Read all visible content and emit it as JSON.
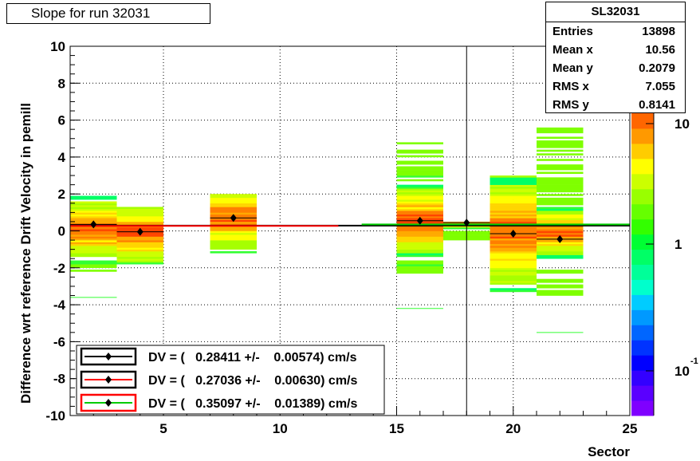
{
  "header": {
    "title": "Slope for run 32031"
  },
  "stats_box": {
    "name": "SL32031",
    "rows": [
      {
        "label": "Entries",
        "value": "13898"
      },
      {
        "label": "Mean x",
        "value": "10.56"
      },
      {
        "label": "Mean y",
        "value": "0.2079"
      },
      {
        "label": "RMS x",
        "value": "7.055"
      },
      {
        "label": "RMS y",
        "value": "0.8141"
      }
    ]
  },
  "legend": [
    {
      "text": "DV = (   0.28411 +/-    0.00574) cm/s",
      "line_color": "#000000",
      "box_color": "#000000"
    },
    {
      "text": "DV = (   0.27036 +/-    0.00630) cm/s",
      "line_color": "#ff0000",
      "box_color": "#000000"
    },
    {
      "text": "DV = (   0.35097 +/-    0.01389) cm/s",
      "line_color": "#00cc00",
      "box_color": "#ff0000"
    }
  ],
  "chart_data": {
    "type": "heatmap",
    "title": "Slope for run 32031",
    "xlabel": "Sector",
    "ylabel": "Difference wrt reference Drift Velocity in pemill",
    "xlim": [
      1,
      25
    ],
    "ylim": [
      -10,
      10
    ],
    "xticks": [
      5,
      10,
      15,
      20,
      25
    ],
    "yticks": [
      -10,
      -8,
      -6,
      -4,
      -2,
      0,
      2,
      4,
      6,
      8,
      10
    ],
    "grid": true,
    "colorbar": {
      "scale": "log",
      "ticks": [
        "10",
        "1",
        "10^-1"
      ]
    },
    "points": [
      {
        "x": 2,
        "y": 0.35
      },
      {
        "x": 4,
        "y": -0.05
      },
      {
        "x": 8,
        "y": 0.7
      },
      {
        "x": 16,
        "y": 0.55
      },
      {
        "x": 18,
        "y": 0.45
      },
      {
        "x": 20,
        "y": -0.15
      },
      {
        "x": 22,
        "y": -0.45
      }
    ],
    "fit_lines": [
      {
        "name": "DV = 0.28411",
        "x": [
          1,
          25
        ],
        "y": 0.28411,
        "color": "#000000"
      },
      {
        "name": "DV = 0.27036",
        "x": [
          1,
          12.5
        ],
        "y": 0.27036,
        "color": "#ff0000"
      },
      {
        "name": "DV = 0.35097",
        "x": [
          13.5,
          25
        ],
        "y": 0.35097,
        "color": "#00cc00"
      }
    ],
    "sector_distributions": [
      {
        "x": 2,
        "ymin": -2.2,
        "ymax": 1.9,
        "core_min": -0.6,
        "core_max": 0.8,
        "outliers": [
          -3.6
        ]
      },
      {
        "x": 4,
        "ymin": -2.0,
        "ymax": 1.3,
        "core_min": -0.8,
        "core_max": 0.6,
        "outliers": []
      },
      {
        "x": 8,
        "ymin": -1.3,
        "ymax": 2.0,
        "core_min": 0.0,
        "core_max": 1.5,
        "outliers": []
      },
      {
        "x": 16,
        "ymin": -2.8,
        "ymax": 5.0,
        "core_min": -0.3,
        "core_max": 1.3,
        "outliers": [
          -4.2
        ]
      },
      {
        "x": 18,
        "ymin": -0.6,
        "ymax": 0.5,
        "core_min": 0.3,
        "core_max": 0.5,
        "outliers": []
      },
      {
        "x": 20,
        "ymin": -3.4,
        "ymax": 3.0,
        "core_min": -1.3,
        "core_max": 1.3,
        "outliers": []
      },
      {
        "x": 22,
        "ymin": -3.6,
        "ymax": 5.7,
        "core_min": -0.6,
        "core_max": 0.5,
        "outliers": [
          -5.5
        ]
      }
    ]
  }
}
